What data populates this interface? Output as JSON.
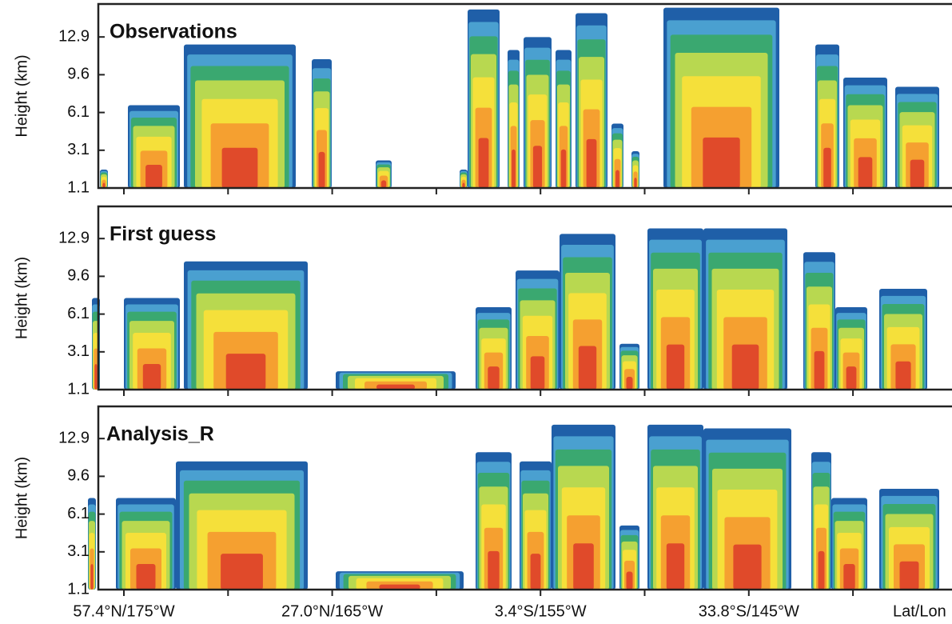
{
  "chart_data": [
    {
      "type": "heatmap",
      "title": "Observations",
      "y_label": "Height  (km)",
      "yticks": [
        1.1,
        3.1,
        6.1,
        9.6,
        12.9
      ]
    },
    {
      "type": "heatmap",
      "title": "First guess",
      "y_label": "Height  (km)",
      "yticks": [
        1.1,
        3.1,
        6.1,
        9.6,
        12.9
      ]
    },
    {
      "type": "heatmap",
      "title": "Analysis_R",
      "y_label": "Height  (km)",
      "yticks": [
        1.1,
        3.1,
        6.1,
        9.6,
        12.9
      ],
      "categories": [
        "57.4°N/175°W",
        null,
        "27.0°N/165°W",
        null,
        "3.4°S/155°W",
        null,
        "33.8°S/145°W",
        null
      ],
      "x_label": "Lat/Lon"
    }
  ]
}
